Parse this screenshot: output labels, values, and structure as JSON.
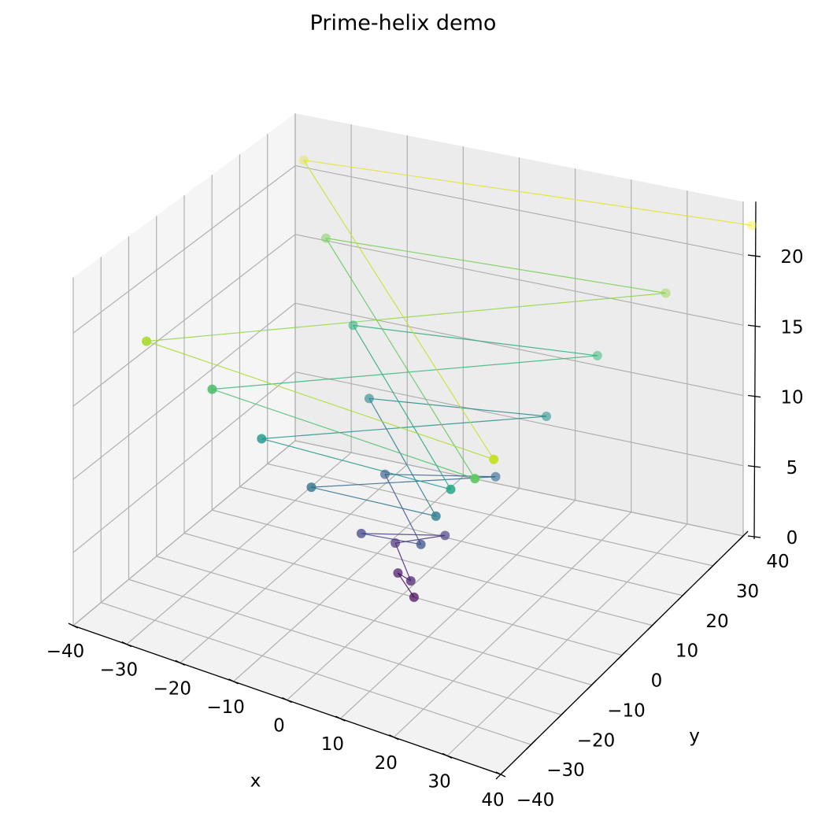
{
  "chart_data": {
    "type": "scatter",
    "title": "Prime-helix demo",
    "xlabel": "x",
    "ylabel": "y",
    "zlabel": "",
    "xlim": [
      -40,
      40
    ],
    "ylim": [
      -40,
      40
    ],
    "zlim": [
      0,
      22
    ],
    "x_ticks": [
      "−40",
      "−30",
      "−20",
      "−10",
      "0",
      "10",
      "20",
      "30",
      "40"
    ],
    "y_ticks": [
      "−40",
      "−30",
      "−20",
      "−10",
      "0",
      "10",
      "20",
      "30",
      "40"
    ],
    "z_ticks": [
      "0",
      "5",
      "10",
      "15",
      "20"
    ],
    "colormap": "viridis",
    "grid": true,
    "series": [
      {
        "x": [
          2,
          -2,
          3,
          -3,
          5,
          -5,
          7,
          -7,
          11,
          -11,
          13,
          -13,
          17,
          -17,
          19,
          -19,
          23,
          -23,
          29,
          -29,
          31,
          -31,
          37,
          -37,
          41
        ],
        "y": [
          0,
          2,
          -3,
          3,
          5,
          -5,
          -7,
          7,
          11,
          -11,
          -13,
          13,
          17,
          -17,
          -19,
          19,
          23,
          -23,
          -29,
          29,
          31,
          -31,
          -37,
          37,
          41
        ],
        "z": [
          0,
          0.9,
          1.8,
          2.7,
          3.7,
          4.6,
          5.5,
          6.4,
          7.3,
          8.2,
          9.2,
          10.1,
          11.0,
          11.9,
          12.8,
          13.7,
          14.7,
          15.6,
          16.5,
          17.4,
          18.3,
          19.2,
          20.2,
          21.1,
          22.0
        ]
      }
    ]
  }
}
